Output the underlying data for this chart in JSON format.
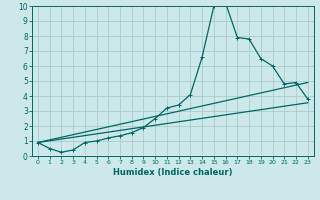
{
  "xlabel": "Humidex (Indice chaleur)",
  "ylabel": "",
  "xlim": [
    -0.5,
    23.5
  ],
  "ylim": [
    0,
    10
  ],
  "background_color": "#cce8e8",
  "grid_color": "#aacccc",
  "line_color": "#006666",
  "x_ticks": [
    0,
    1,
    2,
    3,
    4,
    5,
    6,
    7,
    8,
    9,
    10,
    11,
    12,
    13,
    14,
    15,
    16,
    17,
    18,
    19,
    20,
    21,
    22,
    23
  ],
  "y_ticks": [
    0,
    1,
    2,
    3,
    4,
    5,
    6,
    7,
    8,
    9,
    10
  ],
  "curve1_x": [
    0,
    1,
    2,
    3,
    4,
    5,
    6,
    7,
    8,
    9,
    10,
    11,
    12,
    13,
    14,
    15,
    16,
    17,
    18,
    19,
    20,
    21,
    22,
    23
  ],
  "curve1_y": [
    0.9,
    0.5,
    0.25,
    0.4,
    0.9,
    1.0,
    1.2,
    1.35,
    1.55,
    1.9,
    2.5,
    3.2,
    3.4,
    4.1,
    6.6,
    10.0,
    10.2,
    7.9,
    7.8,
    6.5,
    6.0,
    4.8,
    4.9,
    3.8
  ],
  "line1_x": [
    0,
    23
  ],
  "line1_y": [
    0.9,
    4.9
  ],
  "line2_x": [
    0,
    23
  ],
  "line2_y": [
    0.9,
    3.55
  ]
}
